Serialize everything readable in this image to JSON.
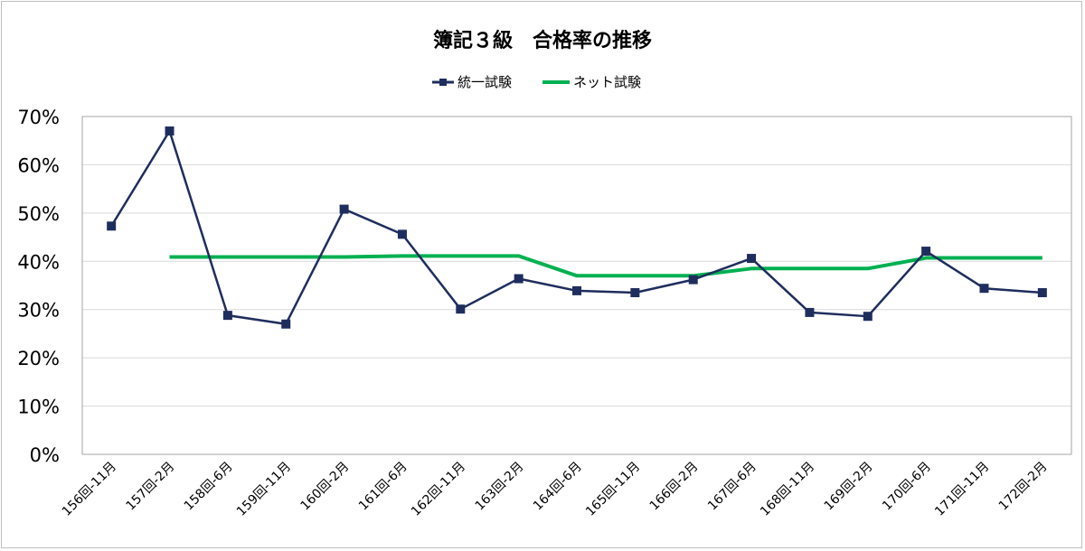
{
  "chart_data": {
    "type": "line",
    "title": "簿記３級　合格率の推移",
    "categories": [
      "156回-11月",
      "157回-2月",
      "158回-6月",
      "159回-11月",
      "160回-2月",
      "161回-6月",
      "162回-11月",
      "163回-2月",
      "164回-6月",
      "165回-11月",
      "166回-2月",
      "167回-6月",
      "168回-11月",
      "169回-2月",
      "170回-6月",
      "171回-11月",
      "172回-2月"
    ],
    "y_tick_labels": [
      "0%",
      "10%",
      "20%",
      "30%",
      "40%",
      "50%",
      "60%",
      "70%"
    ],
    "ylim": [
      0,
      70
    ],
    "grid": true,
    "legend_position": "top",
    "series": [
      {
        "name": "統一試験",
        "color": "#1f2d5e",
        "marker": "square",
        "values": [
          47.3,
          67.0,
          28.8,
          27.0,
          50.8,
          45.6,
          30.1,
          36.4,
          33.9,
          33.5,
          36.2,
          40.6,
          29.4,
          28.6,
          42.1,
          34.4,
          33.5
        ]
      },
      {
        "name": "ネット試験",
        "color": "#00b050",
        "marker": "none",
        "values": [
          null,
          40.9,
          40.9,
          40.9,
          40.9,
          41.1,
          41.1,
          41.1,
          37.0,
          37.0,
          37.0,
          38.5,
          38.5,
          38.5,
          40.7,
          40.7,
          40.7
        ]
      }
    ]
  }
}
